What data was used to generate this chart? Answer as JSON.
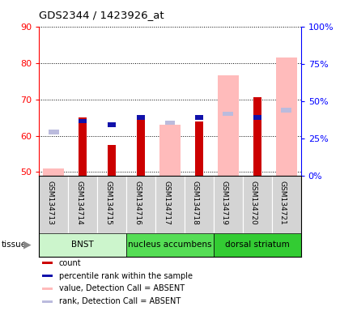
{
  "title": "GDS2344 / 1423926_at",
  "samples": [
    "GSM134713",
    "GSM134714",
    "GSM134715",
    "GSM134716",
    "GSM134717",
    "GSM134718",
    "GSM134719",
    "GSM134720",
    "GSM134721"
  ],
  "ylim_left": [
    49,
    90
  ],
  "ylim_right": [
    0,
    100
  ],
  "yticks_left": [
    50,
    60,
    70,
    80,
    90
  ],
  "yticks_right": [
    0,
    25,
    50,
    75,
    100
  ],
  "yticklabels_right": [
    "0%",
    "25%",
    "50%",
    "75%",
    "100%"
  ],
  "red_count": [
    null,
    65.0,
    57.5,
    65.0,
    null,
    64.0,
    null,
    70.5,
    null
  ],
  "blue_rank": [
    null,
    64.0,
    63.0,
    65.0,
    null,
    65.0,
    null,
    65.0,
    null
  ],
  "pink_value": [
    51.0,
    null,
    null,
    null,
    63.0,
    null,
    76.5,
    null,
    81.5
  ],
  "lightblue_rank": [
    61.0,
    null,
    null,
    null,
    63.5,
    null,
    66.0,
    null,
    67.0
  ],
  "tissues": [
    {
      "label": "BNST",
      "start": 0,
      "end": 3,
      "color": "#ccf5cc"
    },
    {
      "label": "nucleus accumbens",
      "start": 3,
      "end": 6,
      "color": "#55dd55"
    },
    {
      "label": "dorsal striatum",
      "start": 6,
      "end": 9,
      "color": "#33cc33"
    }
  ],
  "tissue_label": "tissue",
  "red_color": "#cc0000",
  "blue_color": "#1111aa",
  "pink_color": "#ffbbbb",
  "lightblue_color": "#bbbbdd",
  "legend_items": [
    {
      "color": "#cc0000",
      "label": "count"
    },
    {
      "color": "#1111aa",
      "label": "percentile rank within the sample"
    },
    {
      "color": "#ffbbbb",
      "label": "value, Detection Call = ABSENT"
    },
    {
      "color": "#bbbbdd",
      "label": "rank, Detection Call = ABSENT"
    }
  ]
}
